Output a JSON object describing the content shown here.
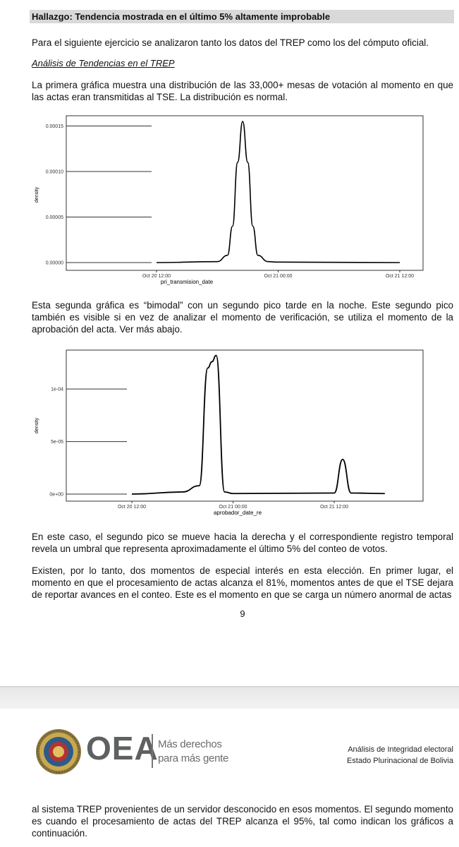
{
  "heading": "Hallazgo: Tendencia mostrada en el último 5% altamente improbable",
  "intro": "Para el siguiente ejercicio se analizaron tanto los datos del TREP como los del cómputo oficial.",
  "subheading": "Análisis de Tendencias en el TREP",
  "para1": "La primera gráfica muestra una distribución de las 33,000+ mesas de votación al momento en que las actas eran transmitidas al TSE. La distribución es normal.",
  "para2": "Esta segunda gráfica es “bimodal” con un segundo pico tarde en la noche. Este segundo pico también es visible si en vez de analizar el momento de verificación, se utiliza el momento de la aprobación del acta. Ver más abajo.",
  "para3": "En este caso, el segundo pico se mueve hacia la derecha y el correspondiente registro temporal revela un umbral que representa aproximadamente el último 5% del conteo de votos.",
  "para4": "Existen, por lo tanto, dos momentos de especial interés en esta elección. En primer lugar, el momento en que el procesamiento de actas alcanza el 81%, momentos antes de que el TSE dejara de reportar avances en el conteo. Este es el momento en que se carga un número anormal de actas",
  "page_number": "9",
  "footer": {
    "logo_text": "OEA",
    "tagline1": "Más derechos",
    "tagline2": "para más gente",
    "line1": "Análisis de Integridad electoral",
    "line2": "Estado Plurinacional de Bolivia"
  },
  "para5": "al sistema TREP provenientes de un servidor desconocido en esos momentos. El segundo momento es cuando el procesamiento de actas del TREP alcanza el 95%, tal como indican los gráficos a continuación.",
  "chart_data": [
    {
      "type": "line",
      "xlabel": "pri_transmision_date",
      "ylabel": "density",
      "x_ticks": [
        "Oct 20 12:00",
        "Oct 21 00:00",
        "Oct 21 12:00"
      ],
      "y_ticks": [
        "0.00000",
        "0.00005",
        "0.00010",
        "0.00015"
      ],
      "ylim": [
        0,
        0.000155
      ],
      "x": [
        "Oct 20 12:00",
        "Oct 20 18:00",
        "Oct 20 19:00",
        "Oct 20 19:30",
        "Oct 20 20:00",
        "Oct 20 20:30",
        "Oct 20 21:00",
        "Oct 20 21:30",
        "Oct 20 22:00",
        "Oct 20 23:00",
        "Oct 21 00:00",
        "Oct 21 12:00"
      ],
      "values": [
        0,
        1e-06,
        8e-06,
        4e-05,
        0.00011,
        0.000155,
        0.00011,
        4e-05,
        8e-06,
        1e-06,
        5e-07,
        0
      ],
      "grid": false,
      "legend": "none"
    },
    {
      "type": "line",
      "xlabel": "aprobador_date_re",
      "ylabel": "density",
      "x_ticks": [
        "Oct 20 12:00",
        "Oct 21 00:00",
        "Oct 21 12:00"
      ],
      "y_ticks": [
        "0e+00",
        "5e-05",
        "1e-04"
      ],
      "ylim": [
        0,
        0.000133
      ],
      "x": [
        "Oct 20 12:00",
        "Oct 20 18:00",
        "Oct 20 20:00",
        "Oct 20 21:00",
        "Oct 20 21:30",
        "Oct 20 22:00",
        "Oct 20 23:00",
        "Oct 21 00:00",
        "Oct 21 12:00",
        "Oct 21 13:00",
        "Oct 21 14:00",
        "Oct 21 18:00"
      ],
      "values": [
        0,
        2e-06,
        8e-06,
        0.00012,
        0.000126,
        0.000132,
        2e-06,
        5e-07,
        1e-06,
        3.3e-05,
        1e-06,
        5e-07
      ],
      "grid": false,
      "legend": "none"
    }
  ]
}
